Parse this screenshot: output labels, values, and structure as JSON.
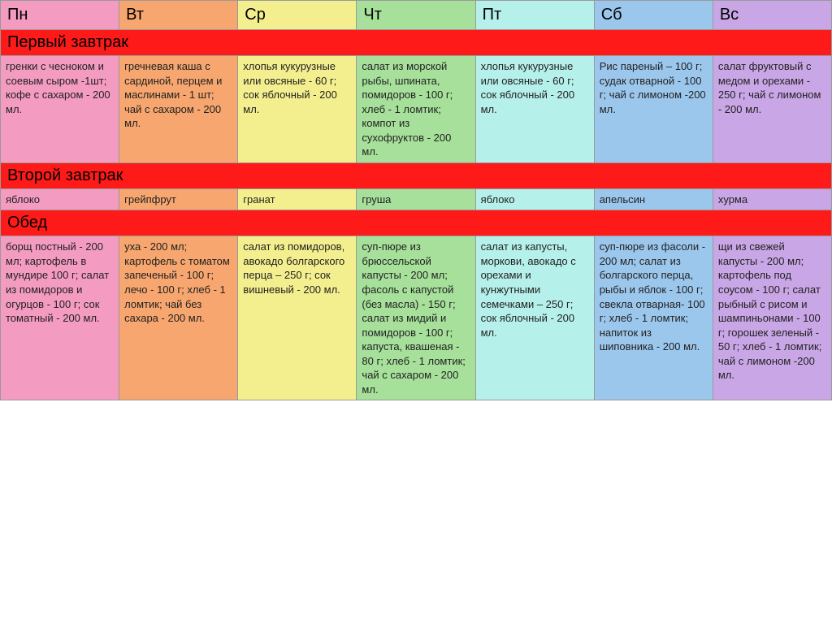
{
  "colors": {
    "mon": "#f49bc1",
    "tue": "#f6a66e",
    "wed": "#f4ef8e",
    "thu": "#a6e09a",
    "fri": "#b6f0ea",
    "sat": "#9cc7ed",
    "sun": "#c9a6e6",
    "header_row": "#ff1a1a",
    "border": "#999999",
    "text": "#222222"
  },
  "days": {
    "mon": "Пн",
    "tue": "Вт",
    "wed": "Ср",
    "thu": "Чт",
    "fri": "Пт",
    "sat": "Сб",
    "sun": "Вс"
  },
  "sections": {
    "breakfast1": "Первый завтрак",
    "breakfast2": "Второй завтрак",
    "lunch": "Обед"
  },
  "meals": {
    "breakfast1": {
      "mon": "гренки с чесноком и соевым сыром -1шт; кофе с сахаром - 200 мл.",
      "tue": "гречневая каша с сардиной, перцем и маслинами - 1 шт; чай с сахаром - 200 мл.",
      "wed": "хлопья кукурузные или овсяные - 60 г; сок яблочный - 200 мл.",
      "thu": "салат из морской рыбы, шпината, помидоров - 100 г; хлеб - 1 ломтик; компот из сухофруктов - 200 мл.",
      "fri": "хлопья кукурузные или овсяные - 60 г; сок яблочный - 200 мл.",
      "sat": "Рис пареный – 100 г; судак отварной - 100 г; чай с лимоном -200 мл.",
      "sun": "салат фруктовый с медом и орехами - 250 г; чай с лимоном - 200 мл."
    },
    "breakfast2": {
      "mon": "яблоко",
      "tue": "грейпфрут",
      "wed": "гранат",
      "thu": "груша",
      "fri": "яблоко",
      "sat": "апельсин",
      "sun": "хурма"
    },
    "lunch": {
      "mon": "борщ постный - 200 мл; картофель в мундире 100 г; салат из помидоров и огурцов - 100 г; сок томатный - 200 мл.",
      "tue": "уха - 200 мл; картофель с томатом запеченый - 100 г; лечо - 100 г; хлеб - 1 ломтик; чай без сахара - 200 мл.",
      "wed": "салат из помидоров, авокадо болгарского перца – 250 г; сок вишневый - 200 мл.",
      "thu": "суп-пюре из брюссельской капусты - 200 мл; фасоль с капустой (без масла) - 150 г; салат из мидий и помидоров - 100 г; капуста, квашеная - 80 г;  хлеб - 1 ломтик; чай с сахаром - 200 мл.",
      "fri": "салат из капусты, моркови, авокадо с орехами и кунжутными семечками – 250 г; сок яблочный - 200 мл.",
      "sat": "суп-пюре из фасоли - 200 мл; салат из болгарского перца, рыбы и яблок - 100 г; свекла отварная- 100 г; хлеб - 1 ломтик; напиток из шиповника - 200 мл.",
      "sun": "щи из свежей капусты - 200 мл; картофель под соусом - 100 г; салат рыбный с рисом и шампиньонами - 100 г; горошек зеленый - 50 г; хлеб - 1 ломтик; чай с лимоном -200 мл."
    }
  }
}
